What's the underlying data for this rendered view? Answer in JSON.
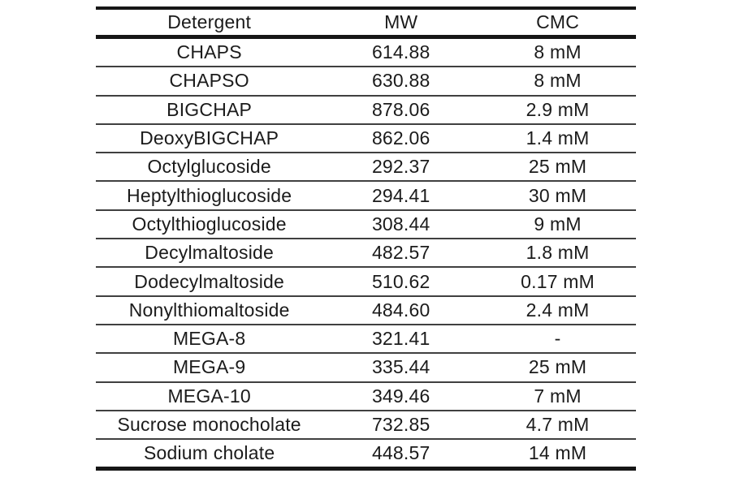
{
  "table": {
    "columns": [
      "Detergent",
      "MW",
      "CMC"
    ],
    "rows": [
      [
        "CHAPS",
        "614.88",
        "8 mM"
      ],
      [
        "CHAPSO",
        "630.88",
        "8 mM"
      ],
      [
        "BIGCHAP",
        "878.06",
        "2.9 mM"
      ],
      [
        "DeoxyBIGCHAP",
        "862.06",
        "1.4 mM"
      ],
      [
        "Octylglucoside",
        "292.37",
        "25 mM"
      ],
      [
        "Heptylthioglucoside",
        "294.41",
        "30 mM"
      ],
      [
        "Octylthioglucoside",
        "308.44",
        "9 mM"
      ],
      [
        "Decylmaltoside",
        "482.57",
        "1.8 mM"
      ],
      [
        "Dodecylmaltoside",
        "510.62",
        "0.17 mM"
      ],
      [
        "Nonylthiomaltoside",
        "484.60",
        "2.4 mM"
      ],
      [
        "MEGA-8",
        "321.41",
        "-"
      ],
      [
        "MEGA-9",
        "335.44",
        "25 mM"
      ],
      [
        "MEGA-10",
        "349.46",
        "7 mM"
      ],
      [
        "Sucrose monocholate",
        "732.85",
        "4.7 mM"
      ],
      [
        "Sodium cholate",
        "448.57",
        "14 mM"
      ]
    ],
    "colors": {
      "background": "#ffffff",
      "text": "#1b1b1b",
      "border_heavy": "#161616",
      "border_light": "#404040"
    }
  }
}
